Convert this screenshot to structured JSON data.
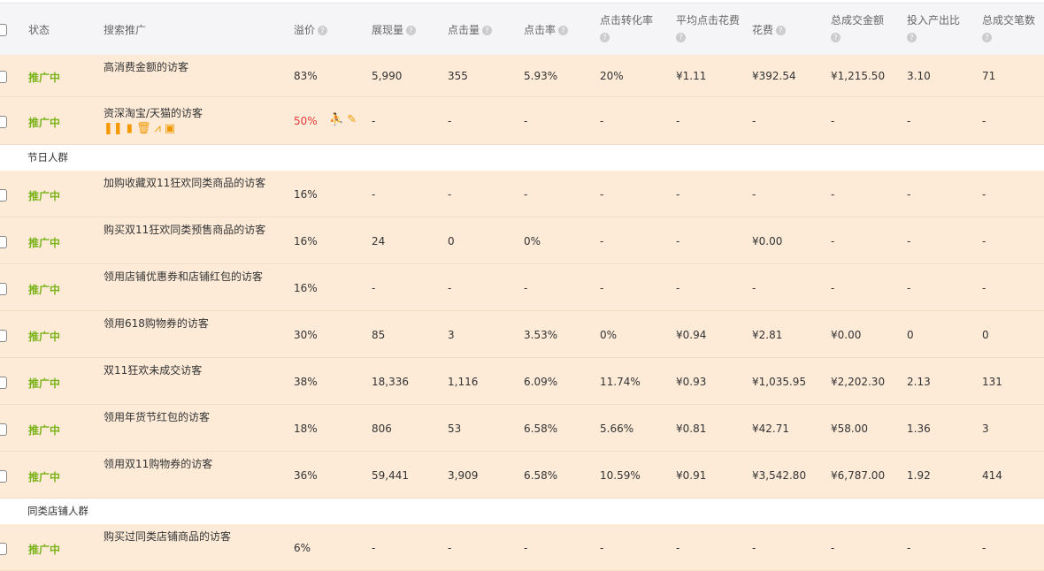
{
  "header": {
    "columns": [
      "状态",
      "搜索推广",
      "溢价",
      "展现量",
      "点击量",
      "点击率",
      "点击转化率",
      "平均点击花费",
      "花费",
      "总成交金额",
      "投入产出比",
      "总成交笔数"
    ],
    "help_icon": "?"
  },
  "accent": {
    "status": "#7ab317",
    "premium_red": "#e4393c",
    "icon": "#f39800",
    "row_bg": "#fdebd8"
  },
  "rows": [
    {
      "type": "row",
      "status": "推广中",
      "name": "高消费金额的访客",
      "premium": "83%",
      "vals": [
        "5,990",
        "355",
        "5.93%",
        "20%",
        "¥1.11",
        "¥392.54",
        "¥1,215.50",
        "3.10",
        "71"
      ]
    },
    {
      "type": "row",
      "status": "推广中",
      "name": "资深淘宝/天猫的访客",
      "premium": "50%",
      "selected": true,
      "vals": [
        "-",
        "-",
        "-",
        "-",
        "-",
        "-",
        "-",
        "-",
        "-"
      ]
    },
    {
      "type": "group",
      "label": "节日人群"
    },
    {
      "type": "row",
      "status": "推广中",
      "name": "加购收藏双11狂欢同类商品的访客",
      "premium": "16%",
      "vals": [
        "-",
        "-",
        "-",
        "-",
        "-",
        "-",
        "-",
        "-",
        "-"
      ]
    },
    {
      "type": "row",
      "status": "推广中",
      "name": "购买双11狂欢同类预售商品的访客",
      "premium": "16%",
      "vals": [
        "24",
        "0",
        "0%",
        "-",
        "-",
        "¥0.00",
        "-",
        "-",
        "-"
      ]
    },
    {
      "type": "row",
      "status": "推广中",
      "name": "领用店铺优惠券和店铺红包的访客",
      "premium": "16%",
      "vals": [
        "-",
        "-",
        "-",
        "-",
        "-",
        "-",
        "-",
        "-",
        "-"
      ]
    },
    {
      "type": "row",
      "status": "推广中",
      "name": "领用618购物券的访客",
      "premium": "30%",
      "vals": [
        "85",
        "3",
        "3.53%",
        "0%",
        "¥0.94",
        "¥2.81",
        "¥0.00",
        "0",
        "0"
      ]
    },
    {
      "type": "row",
      "status": "推广中",
      "name": "双11狂欢未成交访客",
      "premium": "38%",
      "vals": [
        "18,336",
        "1,116",
        "6.09%",
        "11.74%",
        "¥0.93",
        "¥1,035.95",
        "¥2,202.30",
        "2.13",
        "131"
      ]
    },
    {
      "type": "row",
      "status": "推广中",
      "name": "领用年货节红包的访客",
      "premium": "18%",
      "vals": [
        "806",
        "53",
        "6.58%",
        "5.66%",
        "¥0.81",
        "¥42.71",
        "¥58.00",
        "1.36",
        "3"
      ]
    },
    {
      "type": "row",
      "status": "推广中",
      "name": "领用双11购物券的访客",
      "premium": "36%",
      "vals": [
        "59,441",
        "3,909",
        "6.58%",
        "10.59%",
        "¥0.91",
        "¥3,542.80",
        "¥6,787.00",
        "1.92",
        "414"
      ]
    },
    {
      "type": "group",
      "label": "同类店铺人群"
    },
    {
      "type": "row",
      "status": "推广中",
      "name": "购买过同类店铺商品的访客",
      "premium": "6%",
      "vals": [
        "-",
        "-",
        "-",
        "-",
        "-",
        "-",
        "-",
        "-",
        "-"
      ]
    }
  ],
  "row_actions": [
    "pause-icon",
    "clipboard-icon",
    "trash-icon",
    "chart-icon",
    "report-icon"
  ],
  "premium_actions": [
    "user-transfer-icon",
    "pencil-icon"
  ]
}
